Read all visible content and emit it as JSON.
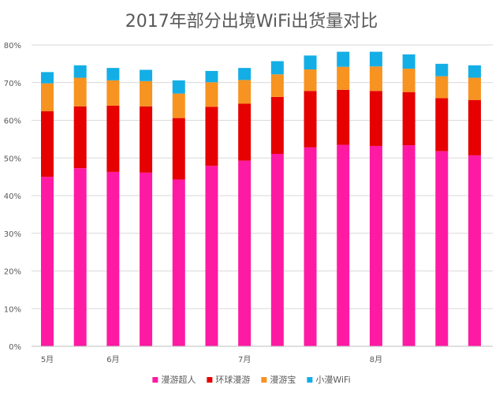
{
  "chart_data": {
    "type": "bar",
    "stacked": true,
    "title": "2017年部分出境WiFi出货量对比",
    "xlabel": "",
    "ylabel": "",
    "ylim": [
      0,
      80
    ],
    "y_tick_labels": [
      "0%",
      "10%",
      "20%",
      "30%",
      "40%",
      "50%",
      "60%",
      "70%",
      "80%"
    ],
    "x_tick_labels": [
      {
        "label": "5月",
        "index": 0
      },
      {
        "label": "6月",
        "index": 2
      },
      {
        "label": "7月",
        "index": 6
      },
      {
        "label": "8月",
        "index": 10
      }
    ],
    "bar_count": 14,
    "grid": true,
    "legend_position": "bottom",
    "series": [
      {
        "name": "漫游超人",
        "color": "#ff1aa3",
        "values": [
          45.0,
          47.3,
          46.3,
          46.1,
          44.3,
          47.9,
          49.3,
          51.1,
          52.8,
          53.5,
          53.2,
          53.4,
          51.8,
          50.7
        ]
      },
      {
        "name": "环球漫游",
        "color": "#e60000",
        "values": [
          17.4,
          16.4,
          17.6,
          17.6,
          16.3,
          15.7,
          15.1,
          15.1,
          15.0,
          14.6,
          14.6,
          14.1,
          14.1,
          14.7
        ]
      },
      {
        "name": "漫游宝",
        "color": "#f79321",
        "values": [
          7.4,
          7.6,
          6.7,
          6.7,
          6.5,
          6.5,
          6.3,
          6.0,
          5.7,
          6.1,
          6.5,
          6.2,
          5.8,
          5.9
        ]
      },
      {
        "name": "小漫WiFi",
        "color": "#14aee6",
        "values": [
          3.0,
          3.3,
          3.3,
          3.0,
          3.5,
          3.0,
          3.2,
          3.5,
          3.7,
          4.0,
          3.9,
          3.8,
          3.3,
          3.3
        ]
      }
    ]
  }
}
